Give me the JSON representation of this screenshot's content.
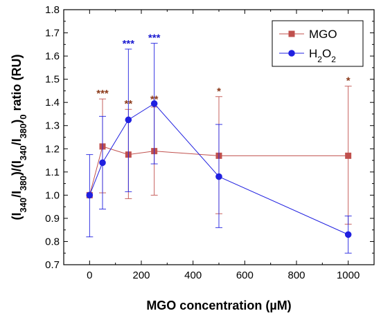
{
  "chart_data": {
    "type": "line",
    "xlabel": "MGO concentration (µM)",
    "ylabel": {
      "parts": [
        "(I",
        "340",
        "/I",
        "380",
        ")/(I",
        "340",
        "/I",
        "380",
        ")",
        "0",
        " ratio   (RU)"
      ],
      "sub": [
        false,
        true,
        false,
        true,
        false,
        true,
        false,
        true,
        false,
        true,
        false
      ]
    },
    "xlim": [
      -100,
      1100
    ],
    "ylim": [
      0.7,
      1.8
    ],
    "xticks": [
      0,
      200,
      400,
      600,
      800,
      1000
    ],
    "xtick_labels": [
      "0",
      "200",
      "400",
      "600",
      "800",
      "1000"
    ],
    "yticks": [
      0.7,
      0.8,
      0.9,
      1.0,
      1.1,
      1.2,
      1.3,
      1.4,
      1.5,
      1.6,
      1.7,
      1.8
    ],
    "ytick_labels": [
      "0.7",
      "0.8",
      "0.9",
      "1.0",
      "1.1",
      "1.2",
      "1.3",
      "1.4",
      "1.5",
      "1.6",
      "1.7",
      "1.8"
    ],
    "grid": false,
    "legend_position": "top-right",
    "series": [
      {
        "name": "MGO",
        "legend_parts": [
          "MGO"
        ],
        "legend_sub": [
          false
        ],
        "color": "#c0504d",
        "marker": "square",
        "x": [
          0,
          50,
          150,
          250,
          500,
          1000
        ],
        "y": [
          1.0,
          1.21,
          1.175,
          1.19,
          1.17,
          1.17
        ],
        "err_low": [
          1.0,
          1.01,
          0.985,
          1.0,
          0.92,
          0.875
        ],
        "err_high": [
          1.0,
          1.415,
          1.37,
          1.38,
          1.425,
          1.47
        ],
        "annotations": [
          {
            "x": 50,
            "text": "***",
            "y": 1.415
          },
          {
            "x": 150,
            "text": "**",
            "y": 1.37
          },
          {
            "x": 250,
            "text": "**",
            "y": 1.39
          },
          {
            "x": 500,
            "text": "*",
            "y": 1.425
          },
          {
            "x": 1000,
            "text": "*",
            "y": 1.47
          }
        ]
      },
      {
        "name": "H2O2",
        "legend_parts": [
          "H",
          "2",
          "O",
          "2"
        ],
        "legend_sub": [
          false,
          true,
          false,
          true
        ],
        "color": "#2020e0",
        "marker": "circle",
        "x": [
          0,
          50,
          150,
          250,
          500,
          1000
        ],
        "y": [
          1.0,
          1.14,
          1.325,
          1.395,
          1.08,
          0.83
        ],
        "err_low": [
          0.82,
          0.94,
          1.015,
          1.135,
          0.86,
          0.75
        ],
        "err_high": [
          1.175,
          1.34,
          1.63,
          1.655,
          1.305,
          0.91
        ],
        "annotations": [
          {
            "x": 150,
            "text": "***",
            "y": 1.63
          },
          {
            "x": 250,
            "text": "***",
            "y": 1.655
          }
        ]
      }
    ],
    "annotation_colors": {
      "MGO": "#8b3a1a",
      "H2O2": "#1a1ad0"
    }
  }
}
